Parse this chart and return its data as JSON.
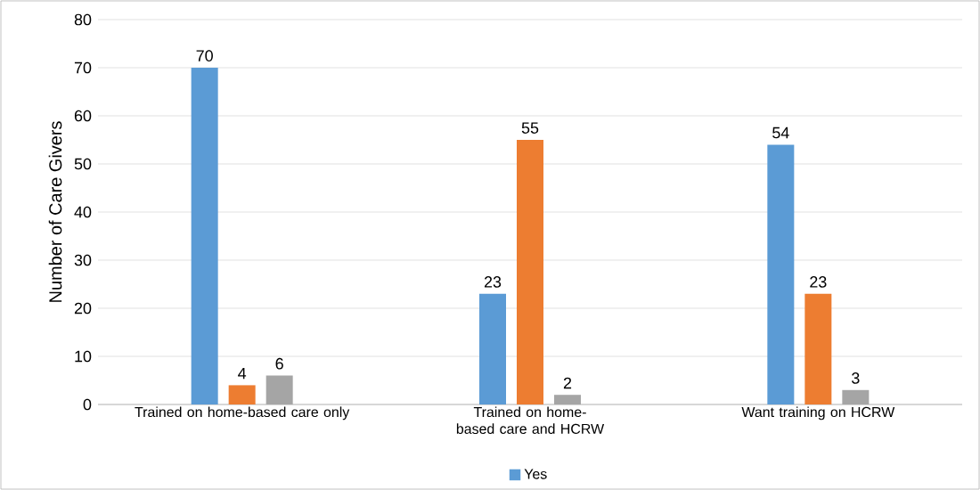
{
  "chart_data": {
    "type": "bar",
    "ylabel": "Number of Care Givers",
    "categories": [
      "Trained on home-based care only",
      "Trained on home-based care and HCRW",
      "Want training on HCRW"
    ],
    "series": [
      {
        "name": "Yes",
        "color": "#5b9bd5",
        "values": [
          70,
          23,
          54
        ]
      },
      {
        "color": "#ed7d31",
        "values": [
          4,
          55,
          23
        ]
      },
      {
        "color": "#a5a5a5",
        "values": [
          6,
          2,
          3
        ]
      }
    ],
    "ylim": [
      0,
      80
    ],
    "yticks": [
      0,
      10,
      20,
      30,
      40,
      50,
      60,
      70,
      80
    ],
    "grid": "y",
    "data_labels": true,
    "legend": "bottom"
  }
}
